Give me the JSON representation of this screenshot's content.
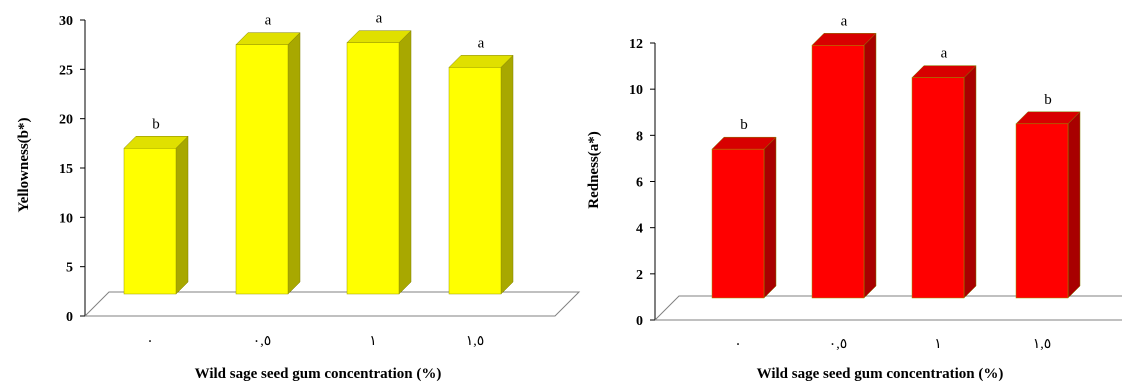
{
  "chart_data": [
    {
      "type": "bar",
      "ylabel": "Yellowness(b*)",
      "xlabel": "Wild sage seed gum concentration (%)",
      "categories": [
        "٠",
        "٠,٥",
        "١",
        "١,٥"
      ],
      "values": [
        17,
        27.5,
        27.7,
        25.2
      ],
      "labels": [
        "b",
        "a",
        "a",
        "a"
      ],
      "ylim": [
        0,
        30
      ],
      "yticks": [
        "0",
        "5",
        "10",
        "15",
        "20",
        "25",
        "30"
      ],
      "colors": {
        "front": "#ffff00",
        "side": "#a8a800",
        "top": "#e0e000"
      },
      "grid": false
    },
    {
      "type": "bar",
      "ylabel": "Redness(a*)",
      "xlabel": "Wild sage seed gum concentration (%)",
      "categories": [
        "٠",
        "٠,٥",
        "١",
        "١,٥"
      ],
      "values": [
        7.4,
        11.9,
        10.5,
        8.5
      ],
      "labels": [
        "b",
        "a",
        "a",
        "b"
      ],
      "ylim": [
        0,
        12
      ],
      "yticks": [
        "0",
        "2",
        "4",
        "6",
        "8",
        "10",
        "12"
      ],
      "colors": {
        "front": "#ff0000",
        "side": "#a80000",
        "top": "#d80000"
      },
      "grid": false
    }
  ]
}
